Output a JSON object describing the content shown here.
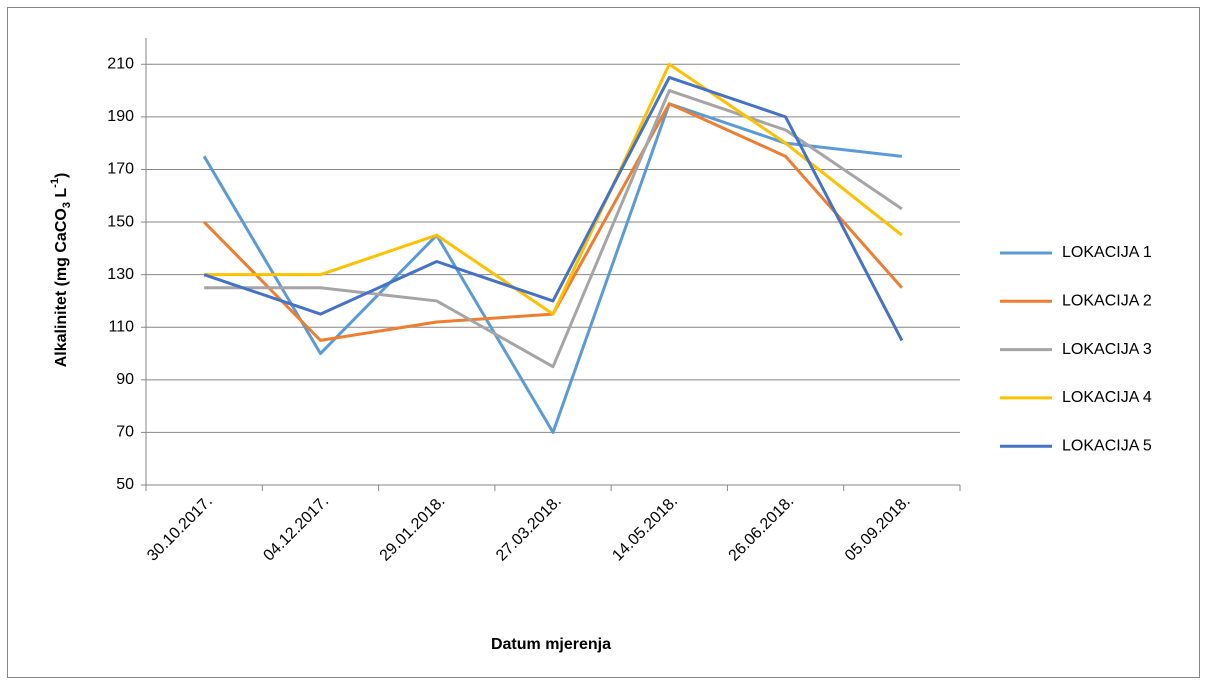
{
  "chart_data": {
    "type": "line",
    "x_label": "Datum mjerenja",
    "y_label": {
      "text": "Alkalinitet (mg CaCO",
      "sub": "3",
      "mid": " L",
      "sup": "-1",
      "end": ")"
    },
    "categories": [
      "30.10.2017.",
      "04.12.2017.",
      "29.01.2018.",
      "27.03.2018.",
      "14.05.2018.",
      "26.06.2018.",
      "05.09.2018."
    ],
    "series": [
      {
        "name": "LOKACIJA 1",
        "color": "#5b9bd5",
        "values": [
          175,
          100,
          145,
          70,
          195,
          180,
          175
        ]
      },
      {
        "name": "LOKACIJA 2",
        "color": "#ed7d31",
        "values": [
          150,
          105,
          112,
          115,
          195,
          175,
          125
        ]
      },
      {
        "name": "LOKACIJA 3",
        "color": "#a5a5a5",
        "values": [
          125,
          125,
          120,
          95,
          200,
          185,
          155
        ]
      },
      {
        "name": "LOKACIJA 4",
        "color": "#ffc000",
        "values": [
          130,
          130,
          145,
          115,
          210,
          180,
          145
        ]
      },
      {
        "name": "LOKACIJA 5",
        "color": "#4472c4",
        "values": [
          130,
          115,
          135,
          120,
          205,
          190,
          105
        ]
      }
    ],
    "ylim": [
      50,
      220
    ],
    "yticks": [
      50,
      70,
      90,
      110,
      130,
      150,
      170,
      190,
      210
    ],
    "grid": true,
    "legend": "right"
  }
}
